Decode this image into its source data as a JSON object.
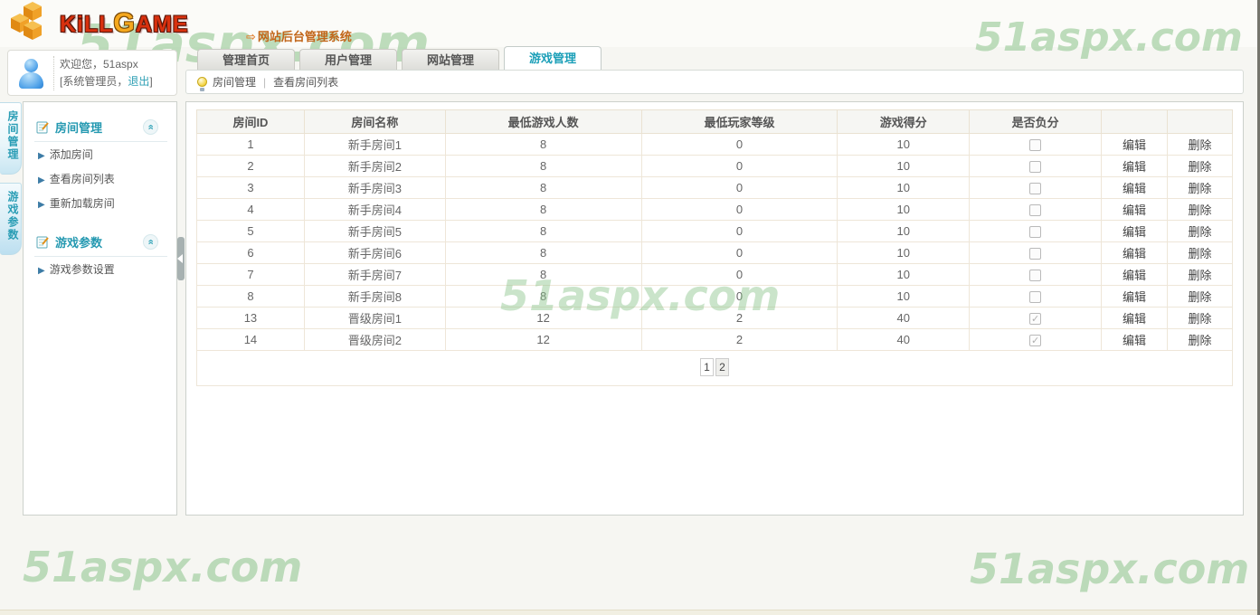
{
  "watermark": {
    "text": "51aspx.com"
  },
  "header": {
    "logo_part1": "KiLL",
    "logo_g": "G",
    "logo_part2": "AME",
    "title_arrow": "⇨",
    "system_title": "网站后台管理系统"
  },
  "user_panel": {
    "welcome": "欢迎您，51aspx",
    "role_prefix": "[系统管理员，",
    "logout_label": "退出",
    "role_suffix": "]"
  },
  "tabs": [
    {
      "label": "管理首页",
      "active": false
    },
    {
      "label": "用户管理",
      "active": false
    },
    {
      "label": "网站管理",
      "active": false
    },
    {
      "label": "游戏管理",
      "active": true
    }
  ],
  "breadcrumb": {
    "section": "房间管理",
    "separator": "|",
    "page": "查看房间列表"
  },
  "side_tabs": [
    {
      "label": "房间管理"
    },
    {
      "label": "游戏参数"
    }
  ],
  "sidebar": {
    "sections": [
      {
        "title": "房间管理",
        "items": [
          "添加房间",
          "查看房间列表",
          "重新加载房间"
        ]
      },
      {
        "title": "游戏参数",
        "items": [
          "游戏参数设置"
        ]
      }
    ]
  },
  "table": {
    "headers": [
      "房间ID",
      "房间名称",
      "最低游戏人数",
      "最低玩家等级",
      "游戏得分",
      "是否负分",
      "",
      ""
    ],
    "edit_label": "编辑",
    "delete_label": "删除",
    "rows": [
      {
        "id": "1",
        "name": "新手房间1",
        "min_players": "8",
        "min_level": "0",
        "score": "10",
        "negative": false
      },
      {
        "id": "2",
        "name": "新手房间2",
        "min_players": "8",
        "min_level": "0",
        "score": "10",
        "negative": false
      },
      {
        "id": "3",
        "name": "新手房间3",
        "min_players": "8",
        "min_level": "0",
        "score": "10",
        "negative": false
      },
      {
        "id": "4",
        "name": "新手房间4",
        "min_players": "8",
        "min_level": "0",
        "score": "10",
        "negative": false
      },
      {
        "id": "5",
        "name": "新手房间5",
        "min_players": "8",
        "min_level": "0",
        "score": "10",
        "negative": false
      },
      {
        "id": "6",
        "name": "新手房间6",
        "min_players": "8",
        "min_level": "0",
        "score": "10",
        "negative": false
      },
      {
        "id": "7",
        "name": "新手房间7",
        "min_players": "8",
        "min_level": "0",
        "score": "10",
        "negative": false
      },
      {
        "id": "8",
        "name": "新手房间8",
        "min_players": "8",
        "min_level": "0",
        "score": "10",
        "negative": false
      },
      {
        "id": "13",
        "name": "晋级房间1",
        "min_players": "12",
        "min_level": "2",
        "score": "40",
        "negative": true
      },
      {
        "id": "14",
        "name": "晋级房间2",
        "min_players": "12",
        "min_level": "2",
        "score": "40",
        "negative": true
      }
    ]
  },
  "pagination": {
    "pages": [
      "1",
      "2"
    ],
    "current": "1"
  },
  "colors": {
    "accent_teal": "#2599b1",
    "title_orange": "#c2661a",
    "watermark_green": "#8bc48b",
    "logo_red": "#d8300e",
    "logo_orange": "#f5a81e"
  }
}
